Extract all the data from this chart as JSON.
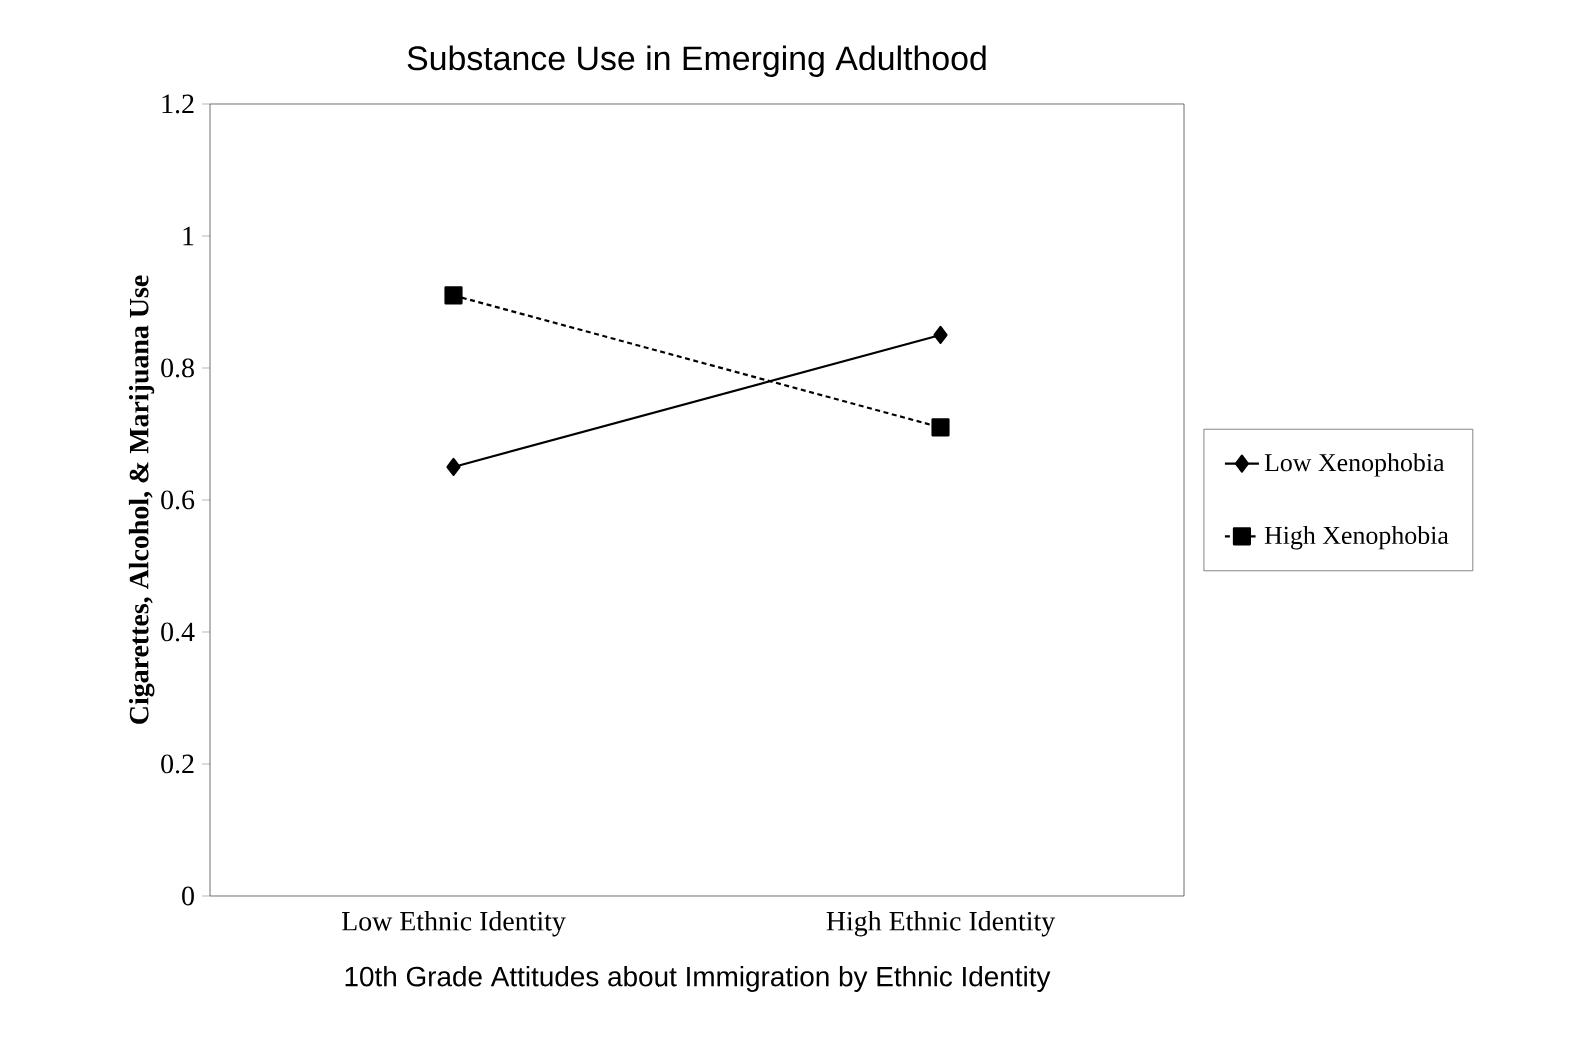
{
  "chart_data": {
    "type": "line",
    "title": "Substance Use in Emerging Adulthood",
    "xlabel": "10th Grade Attitudes about Immigration by Ethnic Identity",
    "ylabel": "Cigarettes, Alcohol, & Marijuana Use",
    "categories": [
      "Low Ethnic Identity",
      "High Ethnic Identity"
    ],
    "series": [
      {
        "name": "Low Xenophobia",
        "color": "#000000",
        "marker": "diamond",
        "line_style": "solid",
        "values": [
          0.65,
          0.85
        ]
      },
      {
        "name": "High Xenophobia",
        "color": "#000000",
        "marker": "square",
        "line_style": "dashed",
        "values": [
          0.91,
          0.71
        ]
      }
    ],
    "ylim": [
      0,
      1.2
    ],
    "yticks": [
      0,
      0.2,
      0.4,
      0.6,
      0.8,
      1,
      1.2
    ],
    "grid": false,
    "legend": "right"
  }
}
